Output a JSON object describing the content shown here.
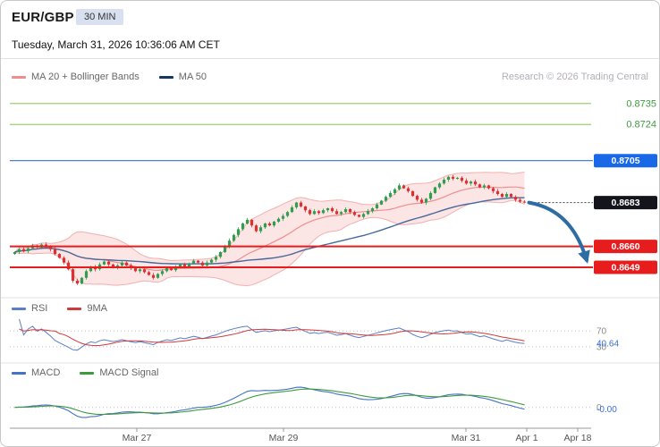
{
  "header": {
    "symbol": "EUR/GBP",
    "timeframe_badge": "30 MIN",
    "datetime": "Tuesday, March 31, 2026 10:36:06 AM CET",
    "credit": "Research © 2026 Trading Central"
  },
  "legends": {
    "main": [
      {
        "label": "MA 20 + Bollinger Bands",
        "color": "#f08c8c"
      },
      {
        "label": "MA 50",
        "color": "#17375e"
      }
    ],
    "rsi": [
      {
        "label": "RSI",
        "color": "#5b7fc7"
      },
      {
        "label": "9MA",
        "color": "#d03a3a"
      }
    ],
    "macd": [
      {
        "label": "MACD",
        "color": "#4472c4"
      },
      {
        "label": "MACD Signal",
        "color": "#3d9a3d"
      }
    ]
  },
  "projection_arrow": {
    "from_value": 0.8683,
    "to_value": 0.8649,
    "direction": "down",
    "color": "#2d6da3"
  },
  "chart_data": [
    {
      "type": "candlestick",
      "title": "EUR/GBP 30 MIN",
      "ylim": [
        0.8634,
        0.8741
      ],
      "up_color": "#2f9e4f",
      "down_color": "#df3030",
      "band_fill": "rgba(244,160,160,0.28)",
      "band_line": "#f2b0b0",
      "ma20_color": "#ec8f8f",
      "ma50_color": "#46699c",
      "first_open": 0.8656,
      "x_ticks": [
        {
          "label": "Mar 27",
          "pos": 0.2185
        },
        {
          "label": "Mar 29",
          "pos": 0.4708
        },
        {
          "label": "Mar 31",
          "pos": 0.7846
        },
        {
          "label": "Apr 1",
          "pos": 0.8892
        },
        {
          "label": "Apr 18",
          "pos": 0.9769
        }
      ],
      "levels": [
        {
          "label": "0.8735",
          "value": 0.8735,
          "style": "resistance-target",
          "line_color": "#9ccf72",
          "text_color": "#3f9b41"
        },
        {
          "label": "0.8724",
          "value": 0.8724,
          "style": "resistance-target",
          "line_color": "#9ccf72",
          "text_color": "#3f9b41"
        },
        {
          "label": "0.8705",
          "value": 0.8705,
          "style": "pivot",
          "line_color": "#3a6fd8",
          "box_color": "#1868e8"
        },
        {
          "label": "0.8683",
          "value": 0.8683,
          "style": "last-price",
          "box_color": "#14141c"
        },
        {
          "label": "0.8660",
          "value": 0.866,
          "style": "support",
          "line_color": "#e71d1d",
          "box_color": "#e71d1d",
          "thick": true
        },
        {
          "label": "0.8649",
          "value": 0.8649,
          "style": "support",
          "line_color": "#e71d1d",
          "box_color": "#e71d1d",
          "thick": true
        }
      ],
      "closes": [
        0.8657,
        0.86585,
        0.86575,
        0.8659,
        0.86605,
        0.86595,
        0.8661,
        0.866,
        0.86585,
        0.8656,
        0.8654,
        0.86515,
        0.8648,
        0.8642,
        0.86405,
        0.86435,
        0.8647,
        0.86495,
        0.8648,
        0.86505,
        0.8652,
        0.86505,
        0.8649,
        0.865,
        0.86515,
        0.865,
        0.86485,
        0.8647,
        0.8648,
        0.86465,
        0.8645,
        0.86435,
        0.86455,
        0.8647,
        0.86485,
        0.86475,
        0.8649,
        0.86505,
        0.86495,
        0.8651,
        0.86525,
        0.86515,
        0.865,
        0.86515,
        0.8653,
        0.86545,
        0.8657,
        0.866,
        0.8663,
        0.8666,
        0.8669,
        0.8672,
        0.8674,
        0.8671,
        0.8668,
        0.867,
        0.8672,
        0.8671,
        0.8673,
        0.86745,
        0.8676,
        0.8678,
        0.86805,
        0.8683,
        0.8681,
        0.8679,
        0.8677,
        0.86785,
        0.86775,
        0.8679,
        0.868,
        0.86785,
        0.8677,
        0.8678,
        0.86795,
        0.8678,
        0.86765,
        0.86755,
        0.8677,
        0.86785,
        0.868,
        0.8682,
        0.8684,
        0.8686,
        0.8688,
        0.869,
        0.8692,
        0.86905,
        0.8689,
        0.86865,
        0.86845,
        0.8683,
        0.8685,
        0.8688,
        0.8691,
        0.8693,
        0.8695,
        0.86965,
        0.86955,
        0.8696,
        0.86945,
        0.8693,
        0.8694,
        0.86925,
        0.8691,
        0.8692,
        0.86905,
        0.8689,
        0.86875,
        0.8686,
        0.86875,
        0.8686,
        0.86845,
        0.86835,
        0.8683
      ]
    },
    {
      "type": "line",
      "name": "RSI",
      "range": [
        0,
        100
      ],
      "guides": [
        70,
        30
      ],
      "last_value_label": "40.64",
      "line_color": "#5b7fc7",
      "ma_color": "#d03a3a",
      "value_color": "#3a6fd8"
    },
    {
      "type": "line",
      "name": "MACD",
      "guides": [
        0
      ],
      "last_value_label": "-0.00",
      "line_color": "#4472c4",
      "signal_color": "#3d9a3d",
      "value_color": "#3a6fd8"
    }
  ]
}
